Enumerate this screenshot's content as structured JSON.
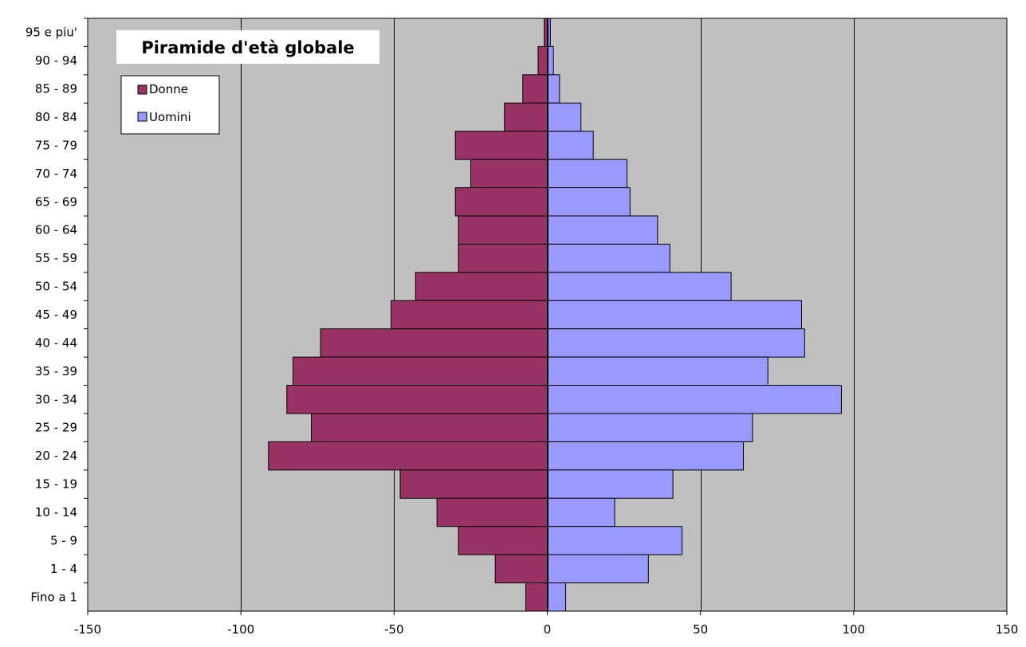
{
  "chart_data": {
    "type": "bar",
    "orientation": "horizontal",
    "stacking": "diverging",
    "title": "Piramide d'età globale",
    "categories": [
      "95 e piu'",
      "90 - 94",
      "85 - 89",
      "80 - 84",
      "75 - 79",
      "70 - 74",
      "65 - 69",
      "60 - 64",
      "55 - 59",
      "50 - 54",
      "45 - 49",
      "40 - 44",
      "35 - 39",
      "30 - 34",
      "25 - 29",
      "20 - 24",
      "15 - 19",
      "10 - 14",
      "5 -  9",
      "1 -  4",
      "Fino a 1"
    ],
    "series": [
      {
        "name": "Donne",
        "color": "#993366",
        "values": [
          -1,
          -3,
          -8,
          -14,
          -30,
          -25,
          -30,
          -29,
          -29,
          -43,
          -51,
          -74,
          -83,
          -85,
          -77,
          -91,
          -48,
          -36,
          -29,
          -17,
          -7
        ]
      },
      {
        "name": "Uomini",
        "color": "#9999ff",
        "values": [
          1,
          2,
          4,
          11,
          15,
          26,
          27,
          36,
          40,
          60,
          83,
          84,
          72,
          96,
          67,
          64,
          41,
          22,
          44,
          33,
          6
        ]
      }
    ],
    "xlim": [
      -150,
      150
    ],
    "x_ticks": [
      -150,
      -100,
      -50,
      0,
      50,
      100,
      150
    ],
    "xlabel": "",
    "ylabel": "",
    "grid": "vertical",
    "legend": "top-left",
    "plot_background": "#c0c0c0"
  }
}
